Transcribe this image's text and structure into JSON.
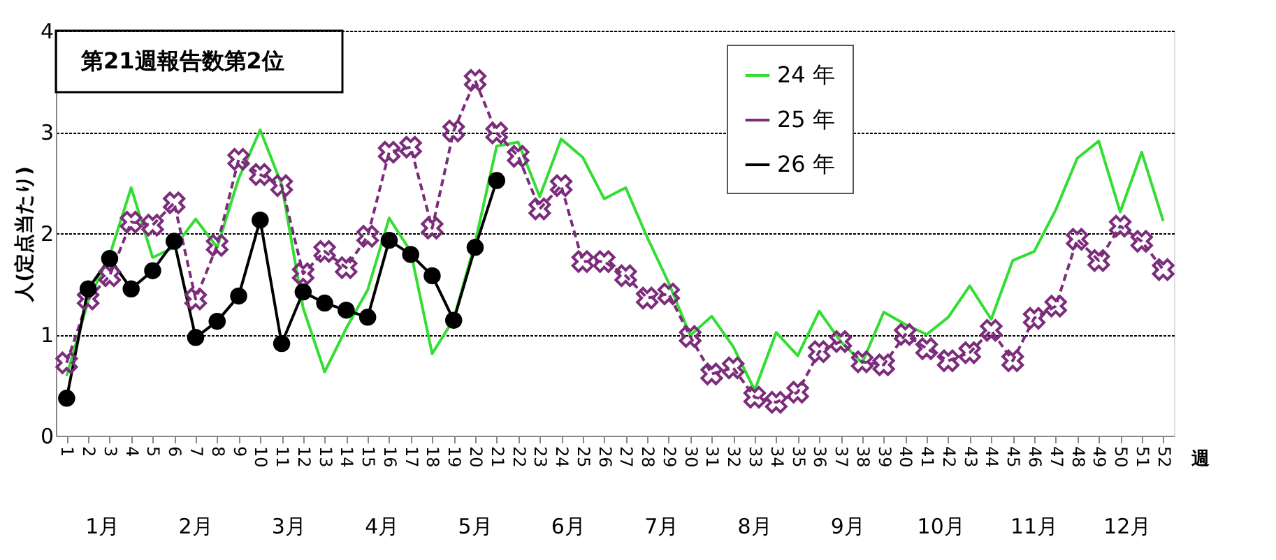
{
  "chart_data": {
    "type": "line",
    "categories": [
      "1",
      "2",
      "3",
      "4",
      "5",
      "6",
      "7",
      "8",
      "9",
      "10",
      "11",
      "12",
      "13",
      "14",
      "15",
      "16",
      "17",
      "18",
      "19",
      "20",
      "21",
      "22",
      "23",
      "24",
      "25",
      "26",
      "27",
      "28",
      "29",
      "30",
      "31",
      "32",
      "33",
      "34",
      "35",
      "36",
      "37",
      "38",
      "39",
      "40",
      "41",
      "42",
      "43",
      "44",
      "45",
      "46",
      "47",
      "48",
      "49",
      "50",
      "51",
      "52"
    ],
    "xlabel": "週",
    "ylabel": "人(定点当たり)",
    "ylim": [
      0,
      4
    ],
    "yticks": [
      0,
      1,
      2,
      3,
      4
    ],
    "grid": "y",
    "legend": "top",
    "series": [
      {
        "name": "24 年",
        "color": "#33dd33",
        "marker": "none",
        "line_style": "solid",
        "values": [
          0.59,
          1.33,
          1.78,
          2.45,
          1.76,
          1.86,
          2.14,
          1.86,
          2.54,
          3.02,
          2.48,
          1.26,
          0.63,
          1.06,
          1.44,
          2.15,
          1.82,
          0.81,
          1.15,
          1.91,
          2.86,
          2.9,
          2.36,
          2.93,
          2.75,
          2.34,
          2.45,
          1.96,
          1.51,
          0.99,
          1.18,
          0.88,
          0.45,
          1.02,
          0.79,
          1.23,
          0.93,
          0.72,
          1.22,
          1.1,
          1.0,
          1.17,
          1.48,
          1.15,
          1.73,
          1.82,
          2.23,
          2.74,
          2.91,
          2.21,
          2.8,
          2.12
        ]
      },
      {
        "name": "25 年",
        "color": "#7b2c7b",
        "marker": "cross",
        "line_style": "dashed",
        "values": [
          0.72,
          1.35,
          1.58,
          2.11,
          2.08,
          2.3,
          1.35,
          1.88,
          2.73,
          2.58,
          2.47,
          1.6,
          1.82,
          1.66,
          1.97,
          2.8,
          2.85,
          2.05,
          3.01,
          3.51,
          2.99,
          2.76,
          2.24,
          2.47,
          1.72,
          1.72,
          1.58,
          1.36,
          1.4,
          0.98,
          0.61,
          0.67,
          0.38,
          0.33,
          0.43,
          0.83,
          0.93,
          0.73,
          0.7,
          1.0,
          0.86,
          0.74,
          0.82,
          1.04,
          0.74,
          1.16,
          1.28,
          1.94,
          1.73,
          2.07,
          1.92,
          1.64
        ]
      },
      {
        "name": "26 年",
        "color": "#000000",
        "marker": "circle",
        "line_style": "solid",
        "values": [
          0.37,
          1.45,
          1.75,
          1.45,
          1.63,
          1.92,
          0.97,
          1.13,
          1.38,
          2.13,
          0.91,
          1.42,
          1.31,
          1.24,
          1.17,
          1.93,
          1.79,
          1.58,
          1.14,
          1.86,
          2.52,
          null,
          null,
          null,
          null,
          null,
          null,
          null,
          null,
          null,
          null,
          null,
          null,
          null,
          null,
          null,
          null,
          null,
          null,
          null,
          null,
          null,
          null,
          null,
          null,
          null,
          null,
          null,
          null,
          null,
          null,
          null
        ]
      }
    ],
    "annotations": [
      "第21週報告数第2位",
      "1月",
      "2月",
      "3月",
      "4月",
      "5月",
      "6月",
      "7月",
      "8月",
      "9月",
      "10月",
      "11月",
      "12月"
    ]
  }
}
